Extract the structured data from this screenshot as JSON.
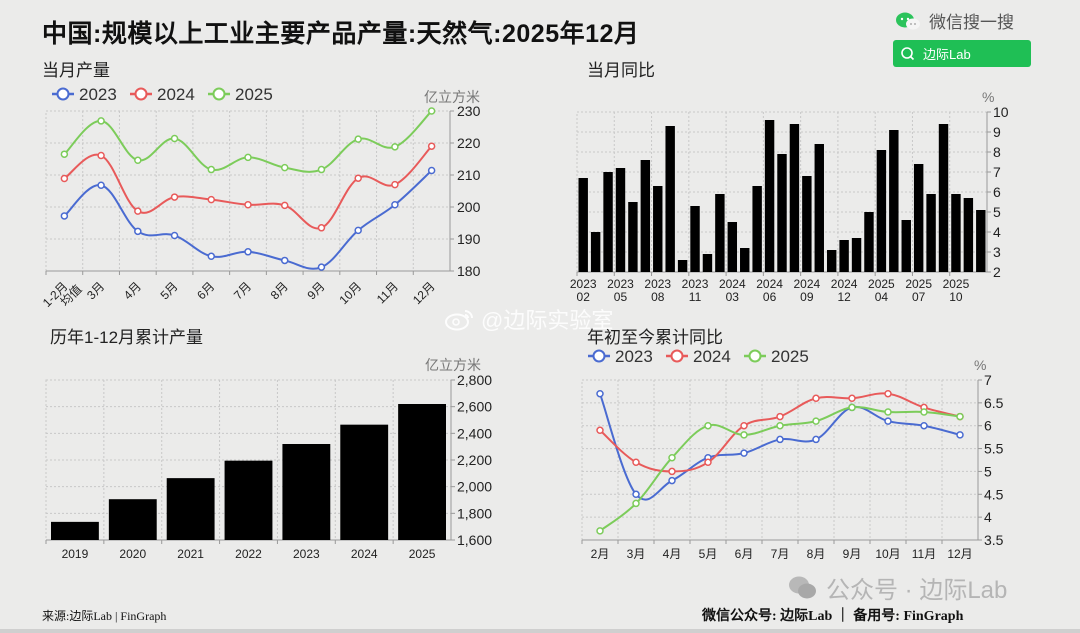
{
  "header": {
    "title": "中国:规模以上工业主要产品产量:天然气:2025年12月",
    "wechat_search_label": "微信搜一搜",
    "search_box_text": "边际Lab"
  },
  "watermarks": {
    "weibo": "@边际实验室",
    "wechat_official": "公众号 · 边际Lab"
  },
  "footer": {
    "source": "来源:边际Lab | FinGraph",
    "right": "微信公众号: 边际Lab ｜ 备用号: FinGraph"
  },
  "colors": {
    "s2023": "#4a6bd1",
    "s2024": "#e85a5a",
    "s2025": "#7ccc5a",
    "bar": "#000000",
    "background": "#ebebea"
  },
  "chart_data": [
    {
      "id": "monthly_output",
      "type": "line",
      "title": "当月产量",
      "unit": "亿立方米",
      "ylim": [
        180,
        230
      ],
      "yticks": [
        180,
        190,
        200,
        210,
        220,
        230
      ],
      "categories": [
        "1-2月均值",
        "3月",
        "4月",
        "5月",
        "6月",
        "7月",
        "8月",
        "9月",
        "10月",
        "11月",
        "12月"
      ],
      "legend": [
        "2023",
        "2024",
        "2025"
      ],
      "series": [
        {
          "name": "2023",
          "values": [
            197.2,
            206.8,
            192.4,
            191.1,
            184.6,
            186.0,
            183.3,
            181.2,
            192.7,
            200.7,
            211.4
          ]
        },
        {
          "name": "2024",
          "values": [
            208.9,
            216.1,
            198.7,
            203.1,
            202.3,
            200.7,
            200.5,
            193.5,
            209.0,
            207.0,
            219.0
          ]
        },
        {
          "name": "2025",
          "values": [
            216.5,
            226.9,
            214.6,
            221.4,
            211.7,
            215.5,
            212.3,
            211.7,
            221.2,
            218.8,
            230.0
          ]
        }
      ]
    },
    {
      "id": "monthly_yoy",
      "type": "bar",
      "title": "当月同比",
      "unit": "%",
      "ylim": [
        2,
        10
      ],
      "yticks": [
        2,
        3,
        4,
        5,
        6,
        7,
        8,
        9,
        10
      ],
      "tick_labels": [
        [
          "2023",
          "02"
        ],
        [
          "2023",
          "05"
        ],
        [
          "2023",
          "08"
        ],
        [
          "2023",
          "11"
        ],
        [
          "2024",
          "03"
        ],
        [
          "2024",
          "06"
        ],
        [
          "2024",
          "09"
        ],
        [
          "2024",
          "12"
        ],
        [
          "2025",
          "04"
        ],
        [
          "2025",
          "07"
        ],
        [
          "2025",
          "10"
        ]
      ],
      "categories": [
        "2023-02",
        "2023-03",
        "2023-04",
        "2023-05",
        "2023-06",
        "2023-07",
        "2023-08",
        "2023-09",
        "2023-10",
        "2023-11",
        "2023-12",
        "2024-02",
        "2024-03",
        "2024-04",
        "2024-05",
        "2024-06",
        "2024-07",
        "2024-08",
        "2024-09",
        "2024-10",
        "2024-11",
        "2024-12",
        "2025-02",
        "2025-03",
        "2025-04",
        "2025-05",
        "2025-06",
        "2025-07",
        "2025-08",
        "2025-09",
        "2025-10",
        "2025-11",
        "2025-12"
      ],
      "values": [
        6.7,
        4.0,
        7.0,
        7.2,
        5.5,
        7.6,
        6.3,
        9.3,
        2.6,
        5.3,
        2.9,
        5.9,
        4.5,
        3.2,
        6.3,
        9.6,
        7.9,
        9.4,
        6.8,
        8.4,
        3.1,
        3.6,
        3.7,
        5.0,
        8.1,
        9.1,
        4.6,
        7.4,
        5.9,
        9.4,
        5.9,
        5.7,
        5.1
      ]
    },
    {
      "id": "annual_cumulative",
      "type": "bar",
      "title": "历年1-12月累计产量",
      "unit": "亿立方米",
      "ylim": [
        1600,
        2800
      ],
      "yticks": [
        "1,600",
        "1,800",
        "2,000",
        "2,200",
        "2,400",
        "2,600",
        "2,800"
      ],
      "categories": [
        "2019",
        "2020",
        "2021",
        "2022",
        "2023",
        "2024",
        "2025"
      ],
      "values": [
        1736,
        1906,
        2064,
        2195,
        2320,
        2465,
        2620
      ]
    },
    {
      "id": "ytd_yoy",
      "type": "line",
      "title": "年初至今累计同比",
      "unit": "%",
      "ylim": [
        3.5,
        7
      ],
      "yticks": [
        "3.5",
        "4",
        "4.5",
        "5",
        "5.5",
        "6",
        "6.5",
        "7"
      ],
      "categories": [
        "2月",
        "3月",
        "4月",
        "5月",
        "6月",
        "7月",
        "8月",
        "9月",
        "10月",
        "11月",
        "12月"
      ],
      "legend": [
        "2023",
        "2024",
        "2025"
      ],
      "series": [
        {
          "name": "2023",
          "values": [
            6.7,
            4.5,
            4.8,
            5.3,
            5.4,
            5.7,
            5.7,
            6.4,
            6.1,
            6.0,
            5.8
          ]
        },
        {
          "name": "2024",
          "values": [
            5.9,
            5.2,
            5.0,
            5.2,
            6.0,
            6.2,
            6.6,
            6.6,
            6.7,
            6.4,
            6.2
          ]
        },
        {
          "name": "2025",
          "values": [
            3.7,
            4.3,
            5.3,
            6.0,
            5.8,
            6.0,
            6.1,
            6.4,
            6.3,
            6.3,
            6.2
          ]
        }
      ]
    }
  ]
}
